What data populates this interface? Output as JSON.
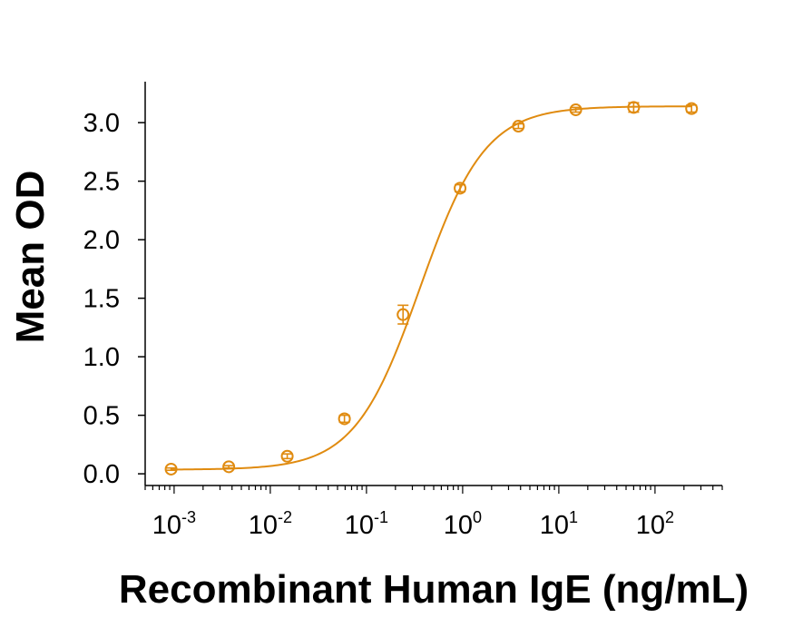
{
  "chart_data": {
    "type": "scatter",
    "title": "",
    "xlabel": "Recombinant Human IgE (ng/mL)",
    "ylabel": "Mean OD",
    "xscale": "log",
    "xlim": [
      0.0005,
      500
    ],
    "ylim": [
      -0.1,
      3.35
    ],
    "grid": false,
    "legend": "none",
    "color": "#E08B10",
    "x_ticks": [
      {
        "base": "10",
        "exp": "-3",
        "value": 0.001
      },
      {
        "base": "10",
        "exp": "-2",
        "value": 0.01
      },
      {
        "base": "10",
        "exp": "-1",
        "value": 0.1
      },
      {
        "base": "10",
        "exp": "0",
        "value": 1
      },
      {
        "base": "10",
        "exp": "1",
        "value": 10
      },
      {
        "base": "10",
        "exp": "2",
        "value": 100
      }
    ],
    "y_ticks": [
      {
        "label": "0.0",
        "value": 0.0
      },
      {
        "label": "0.5",
        "value": 0.5
      },
      {
        "label": "1.0",
        "value": 1.0
      },
      {
        "label": "1.5",
        "value": 1.5
      },
      {
        "label": "2.0",
        "value": 2.0
      },
      {
        "label": "2.5",
        "value": 2.5
      },
      {
        "label": "3.0",
        "value": 3.0
      }
    ],
    "series": [
      {
        "points": [
          {
            "x": 0.00093,
            "y": 0.04,
            "err": 0.01
          },
          {
            "x": 0.0037,
            "y": 0.06,
            "err": 0.01
          },
          {
            "x": 0.015,
            "y": 0.15,
            "err": 0.02
          },
          {
            "x": 0.059,
            "y": 0.47,
            "err": 0.03
          },
          {
            "x": 0.24,
            "y": 1.36,
            "err": 0.08
          },
          {
            "x": 0.94,
            "y": 2.44,
            "err": 0.03
          },
          {
            "x": 3.8,
            "y": 2.97,
            "err": 0.02
          },
          {
            "x": 15,
            "y": 3.11,
            "err": 0.02
          },
          {
            "x": 60,
            "y": 3.13,
            "err": 0.04
          },
          {
            "x": 240,
            "y": 3.12,
            "err": 0.03
          }
        ],
        "fit": {
          "model": "4PL",
          "bottom": 0.035,
          "top": 3.14,
          "ec50": 0.36,
          "hill": 1.28
        }
      }
    ]
  }
}
